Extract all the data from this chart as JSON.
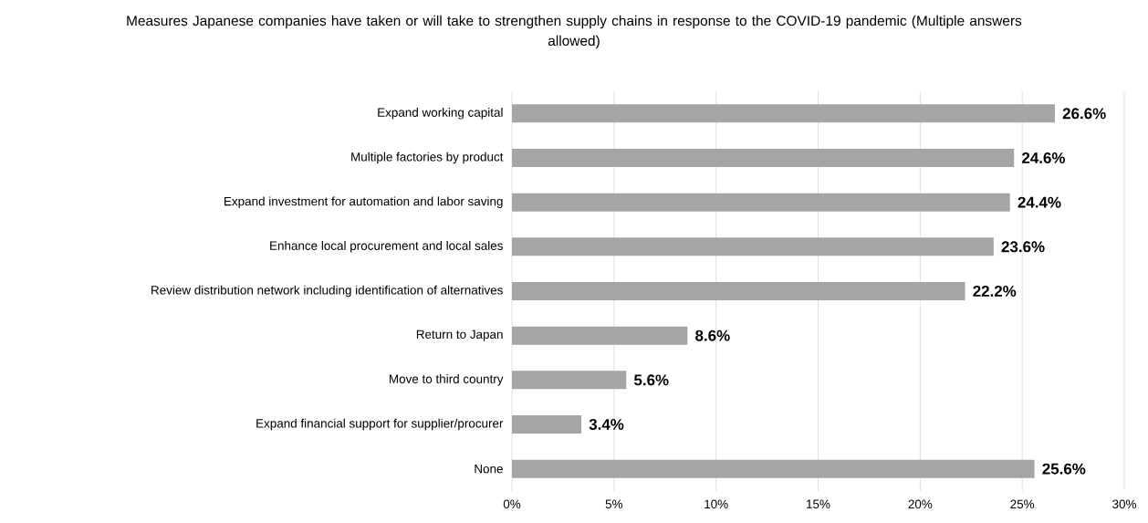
{
  "chart_data": {
    "type": "bar",
    "orientation": "horizontal",
    "title": "Measures Japanese companies have taken or will take to strengthen supply chains in response to the COVID-19 pandemic (Multiple answers allowed)",
    "categories": [
      "Expand working capital",
      "Multiple factories by product",
      "Expand investment for automation and labor saving",
      "Enhance local procurement and local sales",
      "Review distribution network including identification of alternatives",
      "Return to Japan",
      "Move to third country",
      "Expand financial support for supplier/procurer",
      "None"
    ],
    "values": [
      26.6,
      24.6,
      24.4,
      23.6,
      22.2,
      8.6,
      5.6,
      3.4,
      25.6
    ],
    "value_labels": [
      "26.6%",
      "24.6%",
      "24.4%",
      "23.6%",
      "22.2%",
      "8.6%",
      "5.6%",
      "3.4%",
      "25.6%"
    ],
    "color": "#a5a5a5",
    "xlim": [
      0,
      30
    ],
    "xticks": [
      {
        "value": 0,
        "label": "0%"
      },
      {
        "value": 5,
        "label": "5%"
      },
      {
        "value": 10,
        "label": "10%"
      },
      {
        "value": 15,
        "label": "15%"
      },
      {
        "value": 20,
        "label": "20%"
      },
      {
        "value": 25,
        "label": "25%"
      },
      {
        "value": 30,
        "label": "30%"
      }
    ],
    "grid": "x"
  }
}
